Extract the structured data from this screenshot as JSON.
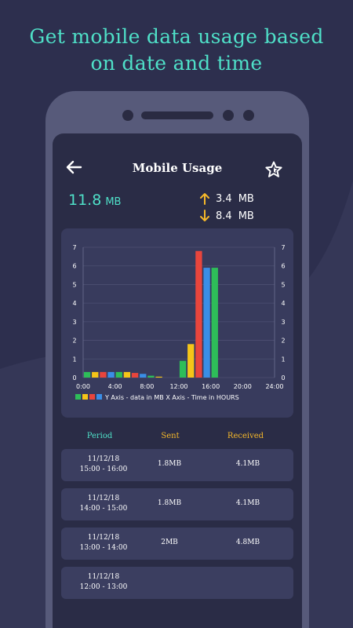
{
  "promo": {
    "line1": "Get mobile data usage based",
    "line2": "on date and time"
  },
  "appbar": {
    "title": "Mobile Usage",
    "back_icon": "arrow-left-icon",
    "star_icon": "star-outline-icon"
  },
  "summary": {
    "total_value": "11.8",
    "total_unit": "MB",
    "upload_value": "3.4",
    "upload_unit": "MB",
    "download_value": "8.4",
    "download_unit": "MB"
  },
  "colors": {
    "accent": "#4fe0c8",
    "orange": "#f5b82a",
    "green": "#2ebd59",
    "yellow": "#f5c518",
    "red": "#e8453c",
    "blue": "#3a8ee6"
  },
  "chart_data": {
    "type": "bar",
    "x_tick_labels": [
      "0:00",
      "4:00",
      "8:00",
      "12:00",
      "16:00",
      "20:00",
      "24:00"
    ],
    "y_ticks": [
      0,
      1,
      2,
      3,
      4,
      5,
      6,
      7
    ],
    "ylim": [
      0,
      7
    ],
    "xlim": [
      0,
      24
    ],
    "hours": [
      0,
      1,
      2,
      3,
      4,
      5,
      6,
      7,
      8,
      9,
      10,
      11,
      12,
      13,
      14,
      15,
      16,
      17,
      18,
      19,
      20,
      21,
      22,
      23
    ],
    "values": [
      0.3,
      0.3,
      0.3,
      0.3,
      0.3,
      0.3,
      0.25,
      0.2,
      0.1,
      0.05,
      0,
      0,
      0.9,
      1.8,
      6.8,
      5.9,
      5.9,
      0,
      0,
      0,
      0,
      0,
      0,
      0
    ],
    "bar_colors": [
      "#2ebd59",
      "#f5c518",
      "#e8453c",
      "#3a8ee6"
    ],
    "legend_text": "Y Axis - data in MB X Axis - Time in HOURS",
    "grid": true
  },
  "table": {
    "headers": {
      "period": "Period",
      "sent": "Sent",
      "received": "Received"
    },
    "rows": [
      {
        "date": "11/12/18",
        "time": "15:00 - 16:00",
        "sent": "1.8MB",
        "received": "4.1MB"
      },
      {
        "date": "11/12/18",
        "time": "14:00 - 15:00",
        "sent": "1.8MB",
        "received": "4.1MB"
      },
      {
        "date": "11/12/18",
        "time": "13:00 - 14:00",
        "sent": "2MB",
        "received": "4.8MB"
      },
      {
        "date": "11/12/18",
        "time": "12:00 - 13:00",
        "sent": "",
        "received": ""
      }
    ]
  }
}
